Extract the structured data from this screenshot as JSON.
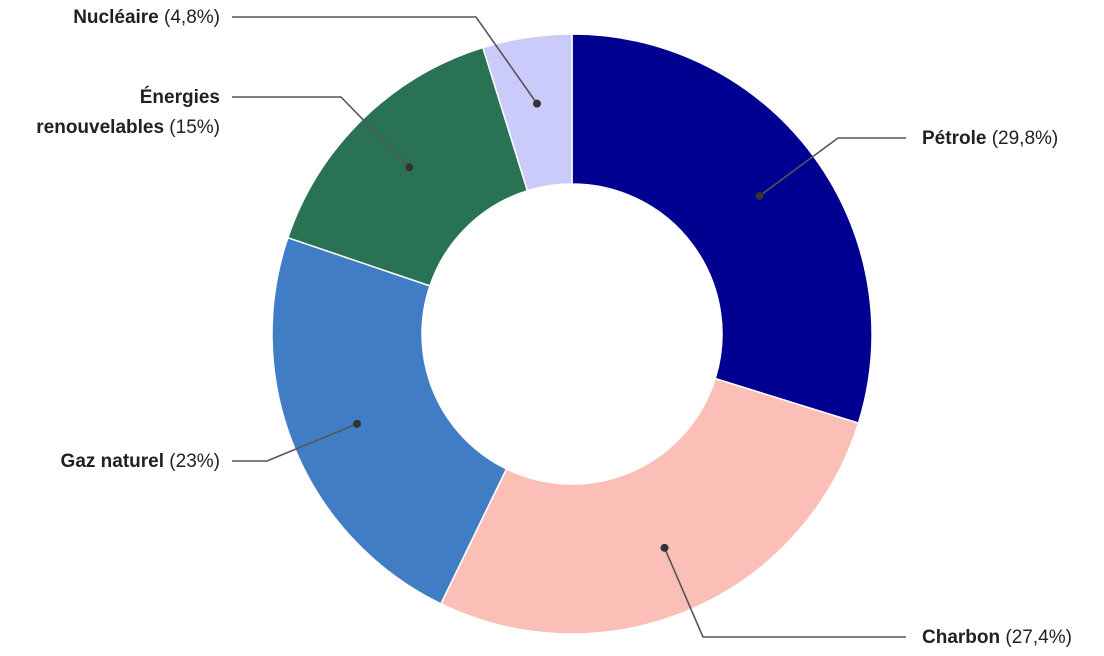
{
  "chart_data": {
    "type": "pie",
    "donut": true,
    "start_angle_deg": 0,
    "direction": "clockwise",
    "slices": [
      {
        "name": "Pétrole",
        "value": 29.8,
        "value_label": "(29,8%)",
        "color": "#000091"
      },
      {
        "name": "Charbon",
        "value": 27.4,
        "value_label": "(27,4%)",
        "color": "#fbbfb8"
      },
      {
        "name": "Gaz naturel",
        "value": 23,
        "value_label": "(23%)",
        "color": "#417dc4"
      },
      {
        "name": "Énergies renouvelables",
        "name_lines": [
          "Énergies",
          "renouvelables"
        ],
        "value": 15,
        "value_label": "(15%)",
        "color": "#297254"
      },
      {
        "name": "Nucléaire",
        "value": 4.8,
        "value_label": "(4,8%)",
        "color": "#cacafb"
      }
    ],
    "legend": "none",
    "labels": "outside-with-leader-lines"
  }
}
